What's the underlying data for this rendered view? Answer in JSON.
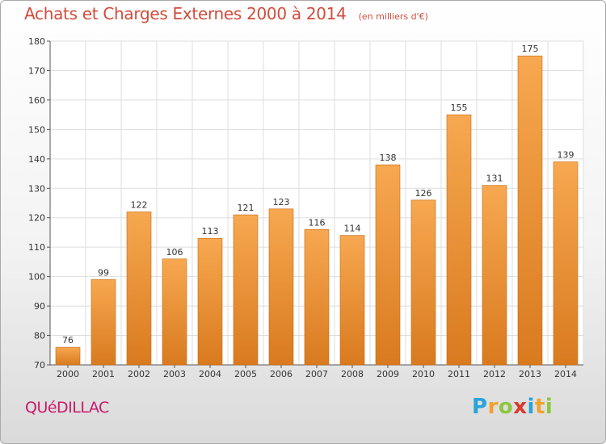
{
  "header": {
    "title": "Achats et Charges Externes 2000 à 2014",
    "subtitle": "(en milliers d'€)"
  },
  "place_name": "QUéDILLAC",
  "logo": {
    "text": "Proxiti",
    "letters": [
      "P",
      "r",
      "o",
      "x",
      "i",
      "t",
      "i"
    ],
    "letter_colors": [
      "#29a3d8",
      "#f0a22e",
      "#8dc63f",
      "#d83a2c",
      "#29a3d8",
      "#f0a22e",
      "#8dc63f"
    ]
  },
  "colors": {
    "bar_light": "#f7a850",
    "bar_dark": "#d97a1f",
    "bar_edge": "#c46a15",
    "grid": "#dddddd",
    "title": "#d34b3c",
    "place": "#c81b6b"
  },
  "chart_data": {
    "type": "bar",
    "title": "Achats et Charges Externes 2000 à 2014",
    "subtitle": "(en milliers d'€)",
    "xlabel": "",
    "ylabel": "",
    "ylim": [
      70,
      180
    ],
    "yticks": [
      70,
      80,
      90,
      100,
      110,
      120,
      130,
      140,
      150,
      160,
      170,
      180
    ],
    "grid": true,
    "categories": [
      "2000",
      "2001",
      "2002",
      "2003",
      "2004",
      "2005",
      "2006",
      "2007",
      "2008",
      "2009",
      "2010",
      "2011",
      "2012",
      "2013",
      "2014"
    ],
    "values": [
      76,
      99,
      122,
      106,
      113,
      121,
      123,
      116,
      114,
      138,
      126,
      155,
      131,
      175,
      139
    ]
  }
}
